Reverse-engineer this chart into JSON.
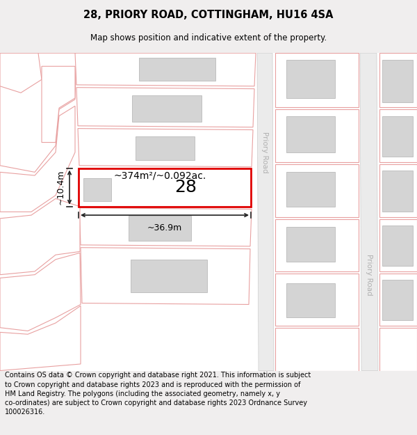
{
  "title": "28, PRIORY ROAD, COTTINGHAM, HU16 4SA",
  "subtitle": "Map shows position and indicative extent of the property.",
  "footer": "Contains OS data © Crown copyright and database right 2021. This information is subject to Crown copyright and database rights 2023 and is reproduced with the permission of HM Land Registry. The polygons (including the associated geometry, namely x, y co-ordinates) are subject to Crown copyright and database rights 2023 Ordnance Survey 100026316.",
  "bg_color": "#f0eeee",
  "map_bg": "#ffffff",
  "plot_fill": "#ffffff",
  "plot_edge": "#e8a0a0",
  "plot_lw": 0.8,
  "building_fill": "#d4d4d4",
  "building_edge": "#b0b0b0",
  "building_lw": 0.5,
  "road_fill": "#ebebeb",
  "road_edge": "#cccccc",
  "road_label_color": "#b0b0b0",
  "highlight_fill": "#ffffff",
  "highlight_edge": "#e00000",
  "highlight_lw": 2.0,
  "dim_color": "#222222",
  "road_label": "Priory Road",
  "property_label": "28",
  "area_label": "~374m²/~0.092ac.",
  "width_label": "~36.9m",
  "height_label": "~10.4m",
  "title_fontsize": 10.5,
  "subtitle_fontsize": 8.5,
  "footer_fontsize": 7.0
}
